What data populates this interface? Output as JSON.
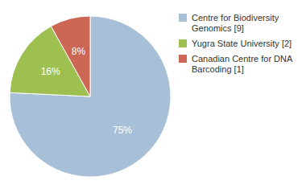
{
  "chart_data": {
    "type": "pie",
    "categories": [
      "Centre for Biodiversity\nGenomics [9]",
      "Yugra State University [2]",
      "Canadian Centre for DNA\nBarcoding [1]"
    ],
    "values": [
      75,
      16,
      8
    ],
    "value_labels": [
      "75%",
      "16%",
      "8%"
    ],
    "colors": [
      "#a8bfd8",
      "#9dc050",
      "#cc6655"
    ],
    "data_labels": true,
    "legend": "right"
  }
}
